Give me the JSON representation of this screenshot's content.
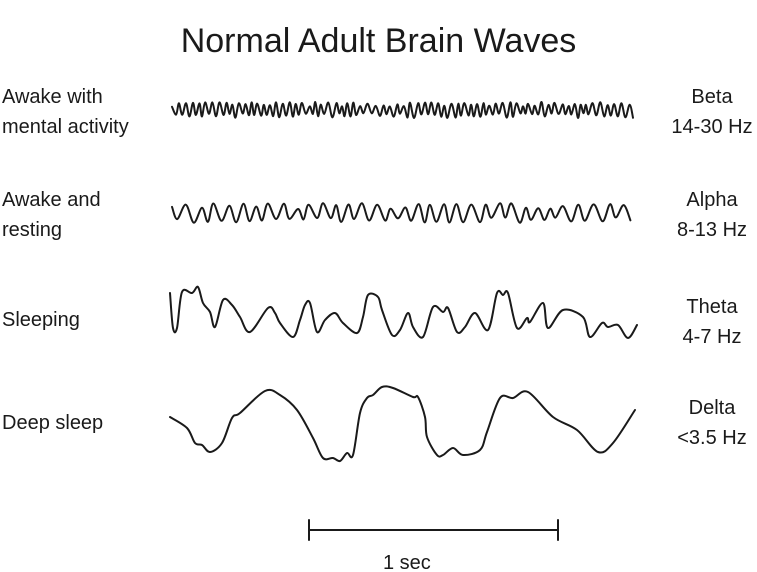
{
  "title": "Normal Adult Brain Waves",
  "rows": [
    {
      "state": [
        "Awake with",
        "mental activity"
      ],
      "wave": "Beta",
      "freq": "14-30 Hz"
    },
    {
      "state": [
        "Awake and",
        "resting"
      ],
      "wave": "Alpha",
      "freq": "8-13 Hz"
    },
    {
      "state": [
        "Sleeping"
      ],
      "wave": "Theta",
      "freq": "4-7 Hz"
    },
    {
      "state": [
        "Deep sleep"
      ],
      "wave": "Delta",
      "freq": "<3.5 Hz"
    }
  ],
  "scale_bar": {
    "label": "1 sec"
  }
}
